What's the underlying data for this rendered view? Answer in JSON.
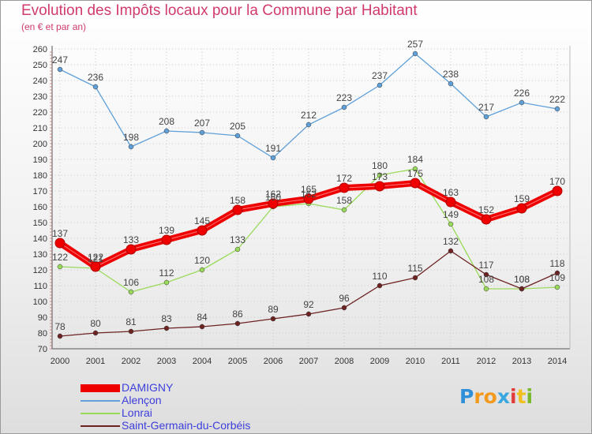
{
  "header": {
    "title": "Evolution des Impôts locaux pour la Commune par Habitant",
    "subtitle": "(en € et par an)"
  },
  "chart_data": {
    "type": "line",
    "title": "Evolution des Impôts locaux pour la Commune par Habitant",
    "subtitle": "(en € et par an)",
    "xlabel": "",
    "ylabel": "",
    "categories": [
      "2000",
      "2001",
      "2002",
      "2003",
      "2004",
      "2005",
      "2006",
      "2007",
      "2008",
      "2009",
      "2010",
      "2011",
      "2012",
      "2013",
      "2014"
    ],
    "ylim": [
      70,
      260
    ],
    "yticks": [
      70,
      80,
      90,
      100,
      110,
      120,
      130,
      140,
      150,
      160,
      170,
      180,
      190,
      200,
      210,
      220,
      230,
      240,
      250,
      260
    ],
    "grid": true,
    "legend_position": "bottom-left",
    "series": [
      {
        "name": "DAMIGNY",
        "color": "#ee0000",
        "emphasis": true,
        "values": [
          137,
          122,
          133,
          139,
          145,
          158,
          162,
          165,
          172,
          173,
          175,
          163,
          152,
          159,
          170
        ],
        "labels": [
          "137",
          "122",
          "133",
          "139",
          "145",
          "158",
          "162",
          "165",
          "172",
          "173",
          "175",
          "163",
          "152",
          "159",
          "170"
        ]
      },
      {
        "name": "Alençon",
        "color": "#5fa0d8",
        "values": [
          247,
          236,
          198,
          208,
          207,
          205,
          191,
          212,
          223,
          237,
          257,
          238,
          217,
          226,
          222
        ],
        "labels": [
          "247",
          "236",
          "198",
          "208",
          "207",
          "205",
          "191",
          "212",
          "223",
          "237",
          "257",
          "238",
          "217",
          "226",
          "222"
        ]
      },
      {
        "name": "Lonrai",
        "color": "#9ada5a",
        "values": [
          122,
          121,
          106,
          112,
          120,
          133,
          160,
          162,
          158,
          180,
          184,
          149,
          108,
          108,
          109
        ],
        "labels": [
          "122",
          "121",
          "106",
          "112",
          "120",
          "133",
          "160",
          "162",
          "158",
          "180",
          "184",
          "149",
          "108",
          "108",
          "109"
        ]
      },
      {
        "name": "Saint-Germain-du-Corbéis",
        "color": "#6e2323",
        "values": [
          78,
          80,
          81,
          83,
          84,
          86,
          89,
          92,
          96,
          110,
          115,
          132,
          117,
          108,
          118
        ],
        "labels": [
          "78",
          "80",
          "81",
          "83",
          "84",
          "86",
          "89",
          "92",
          "96",
          "110",
          "115",
          "132",
          "117",
          "108",
          "118"
        ]
      }
    ]
  },
  "logo": {
    "letters": [
      "P",
      "r",
      "o",
      "x",
      "i",
      "t",
      "i"
    ],
    "colors": [
      "#2f8fd8",
      "#f39a1e",
      "#f39a1e",
      "#3aa6e0",
      "#e23c3c",
      "#f0c020",
      "#78b82a"
    ]
  }
}
